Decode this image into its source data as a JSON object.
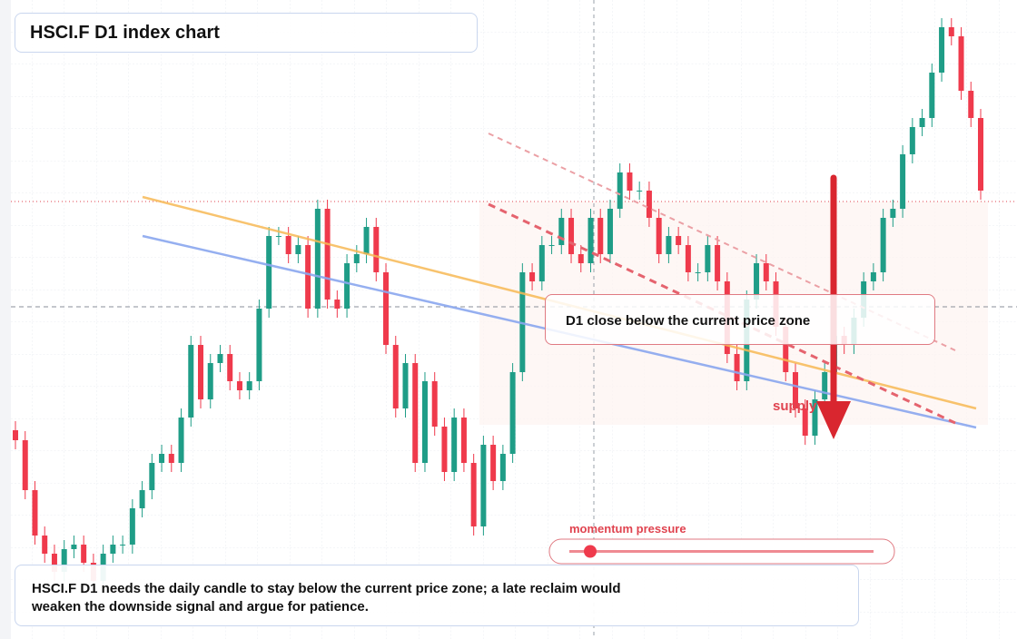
{
  "chart_data": {
    "type": "candlestick",
    "title": "HSCI.F D1 index chart",
    "callout": "D1 close below the current price zone",
    "zone_label": "supply",
    "slider_label": "momentum pressure",
    "note": "HSCI.F D1 needs the daily candle to stay below the current price zone; a late reclaim would weaken the downside signal and argue for patience.",
    "up_color": "#1f9d87",
    "down_color": "#ef3a4c",
    "ylim": [
      0,
      704
    ],
    "open": [
      230,
      219,
      164,
      114,
      94,
      74,
      99,
      104,
      84,
      64,
      94,
      104,
      104,
      144,
      164,
      194,
      204,
      194,
      244,
      324,
      264,
      304,
      314,
      284,
      274,
      284,
      364,
      444,
      444,
      424,
      434,
      364,
      474,
      374,
      364,
      414,
      424,
      454,
      404,
      324,
      254,
      304,
      194,
      284,
      234,
      184,
      244,
      194,
      124,
      214,
      174,
      204,
      294,
      404,
      394,
      434,
      434,
      464,
      424,
      414,
      464,
      424,
      474,
      514,
      494,
      494,
      464,
      424,
      444,
      434,
      404,
      404,
      434,
      394,
      314,
      284,
      374,
      414,
      394,
      344,
      294,
      254,
      224,
      264,
      294,
      334,
      324,
      354,
      394,
      404,
      464,
      474,
      534,
      564,
      574,
      624,
      674,
      664,
      604,
      574
    ],
    "high": [
      240,
      229,
      174,
      124,
      104,
      109,
      114,
      114,
      94,
      104,
      114,
      114,
      154,
      174,
      204,
      214,
      214,
      254,
      334,
      334,
      314,
      324,
      324,
      294,
      294,
      374,
      454,
      454,
      454,
      444,
      444,
      484,
      484,
      384,
      424,
      434,
      464,
      464,
      414,
      334,
      314,
      314,
      294,
      294,
      244,
      254,
      254,
      204,
      224,
      224,
      214,
      304,
      414,
      414,
      444,
      444,
      474,
      474,
      434,
      474,
      474,
      484,
      524,
      524,
      504,
      504,
      474,
      454,
      454,
      444,
      414,
      444,
      444,
      404,
      324,
      384,
      424,
      424,
      404,
      354,
      304,
      264,
      274,
      304,
      344,
      344,
      364,
      404,
      414,
      474,
      484,
      544,
      574,
      584,
      634,
      684,
      684,
      674,
      614,
      584
    ],
    "low": [
      209,
      154,
      104,
      84,
      64,
      64,
      89,
      74,
      54,
      54,
      84,
      94,
      94,
      134,
      154,
      184,
      184,
      184,
      234,
      254,
      254,
      294,
      274,
      264,
      264,
      274,
      354,
      434,
      414,
      414,
      354,
      354,
      364,
      354,
      354,
      404,
      414,
      394,
      314,
      244,
      244,
      184,
      184,
      224,
      174,
      174,
      184,
      114,
      114,
      164,
      164,
      194,
      284,
      384,
      384,
      424,
      424,
      414,
      404,
      404,
      414,
      414,
      464,
      484,
      484,
      454,
      414,
      414,
      424,
      394,
      394,
      394,
      384,
      304,
      274,
      274,
      364,
      384,
      334,
      284,
      244,
      214,
      214,
      254,
      284,
      314,
      314,
      344,
      384,
      394,
      454,
      464,
      524,
      554,
      564,
      614,
      654,
      594,
      564,
      484
    ],
    "close": [
      219,
      164,
      114,
      94,
      74,
      99,
      104,
      84,
      64,
      94,
      104,
      104,
      144,
      164,
      194,
      204,
      194,
      244,
      324,
      264,
      304,
      314,
      284,
      274,
      284,
      364,
      444,
      444,
      424,
      434,
      364,
      474,
      374,
      364,
      414,
      424,
      454,
      404,
      324,
      254,
      304,
      194,
      284,
      234,
      184,
      244,
      194,
      124,
      214,
      174,
      204,
      294,
      404,
      394,
      434,
      434,
      464,
      424,
      414,
      464,
      424,
      474,
      514,
      494,
      494,
      464,
      424,
      444,
      434,
      404,
      404,
      434,
      394,
      314,
      284,
      374,
      414,
      394,
      344,
      294,
      254,
      224,
      264,
      294,
      334,
      324,
      354,
      394,
      404,
      464,
      474,
      534,
      564,
      574,
      624,
      674,
      664,
      604,
      574,
      494
    ]
  }
}
